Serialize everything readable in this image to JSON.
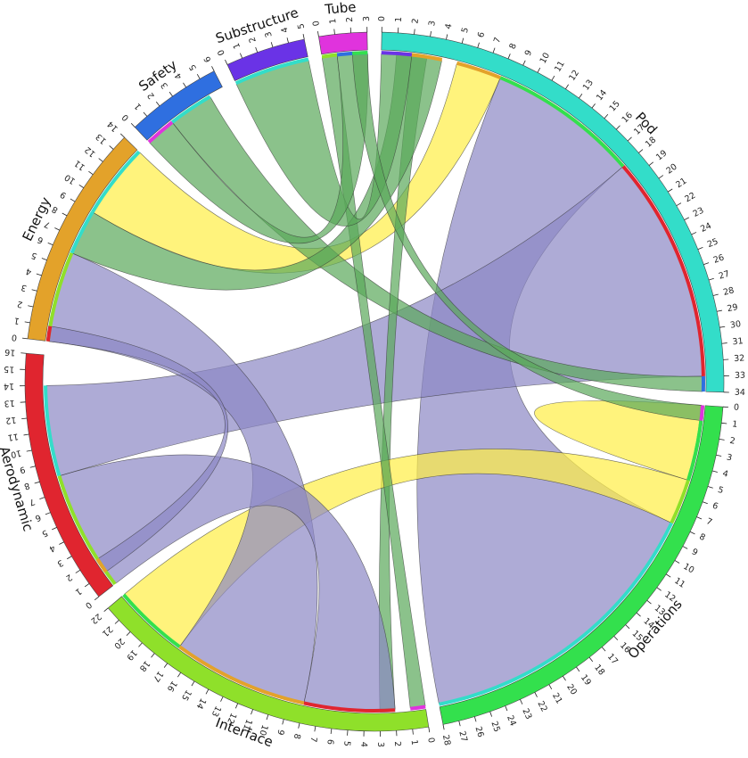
{
  "chart_data": {
    "type": "chord",
    "segments": [
      {
        "name": "Pod",
        "max": 34,
        "color": "#33ddc9"
      },
      {
        "name": "Operations",
        "max": 28,
        "color": "#33e04d"
      },
      {
        "name": "Interface",
        "max": 22,
        "color": "#8fe02a"
      },
      {
        "name": "Aerodynamic",
        "max": 16,
        "color": "#e0252f"
      },
      {
        "name": "Energy",
        "max": 14,
        "color": "#e3a22a"
      },
      {
        "name": "Safety",
        "max": 6,
        "color": "#2f6fe0"
      },
      {
        "name": "Substructure",
        "max": 5,
        "color": "#6a33e6"
      },
      {
        "name": "Tube",
        "max": 3,
        "color": "#e033dd"
      }
    ],
    "links": [
      {
        "source": "Pod",
        "source_range": [
          8,
          18
        ],
        "target": "Operations",
        "target_range": [
          8,
          28
        ],
        "color": "#8c88c5"
      },
      {
        "source": "Pod",
        "source_range": [
          18,
          33
        ],
        "target": "Aerodynamic",
        "target_range": [
          8,
          14
        ],
        "color": "#8c88c5"
      },
      {
        "source": "Pod",
        "source_range": [
          5,
          8
        ],
        "target": "Energy",
        "target_range": [
          9,
          14
        ],
        "color": "#ffee44"
      },
      {
        "source": "Pod",
        "source_range": [
          33,
          34
        ],
        "target": "Safety",
        "target_range": [
          2,
          5
        ],
        "color": "#5aa85a"
      },
      {
        "source": "Pod",
        "source_range": [
          2,
          3
        ],
        "target": "Interface",
        "target_range": [
          2,
          3
        ],
        "color": "#5aa85a"
      },
      {
        "source": "Operations",
        "source_range": [
          0,
          5
        ],
        "target": "Operations",
        "target_range": [
          0,
          5
        ],
        "color": "#ffee44"
      },
      {
        "source": "Operations",
        "source_range": [
          5,
          8
        ],
        "target": "Interface",
        "target_range": [
          17,
          22
        ],
        "color": "#ffee44"
      },
      {
        "source": "Interface",
        "source_range": [
          8,
          17
        ],
        "target": "Energy",
        "target_range": [
          0,
          6
        ],
        "color": "#8c88c5"
      },
      {
        "source": "Interface",
        "source_range": [
          0,
          1
        ],
        "target": "Tube",
        "target_range": [
          0,
          1
        ],
        "color": "#5aa85a"
      },
      {
        "source": "Aerodynamic",
        "source_range": [
          0,
          8
        ],
        "target": "Interface",
        "target_range": [
          2,
          8
        ],
        "color": "#8c88c5"
      },
      {
        "source": "Energy",
        "source_range": [
          0,
          1
        ],
        "target": "Aerodynamic",
        "target_range": [
          1,
          2
        ],
        "color": "#8c88c5"
      },
      {
        "source": "Energy",
        "source_range": [
          6,
          9
        ],
        "target": "Pod",
        "target_range": [
          1,
          4
        ],
        "color": "#5aa85a"
      },
      {
        "source": "Substructure",
        "source_range": [
          0,
          5
        ],
        "target": "Pod",
        "target_range": [
          0,
          2
        ],
        "color": "#5aa85a"
      },
      {
        "source": "Tube",
        "source_range": [
          1,
          3
        ],
        "target": "Safety",
        "target_range": [
          0,
          2
        ],
        "color": "#5aa85a"
      },
      {
        "source": "Tube",
        "source_range": [
          2,
          3
        ],
        "target": "Operations",
        "target_range": [
          0,
          1
        ],
        "color": "#5aa85a"
      }
    ]
  }
}
